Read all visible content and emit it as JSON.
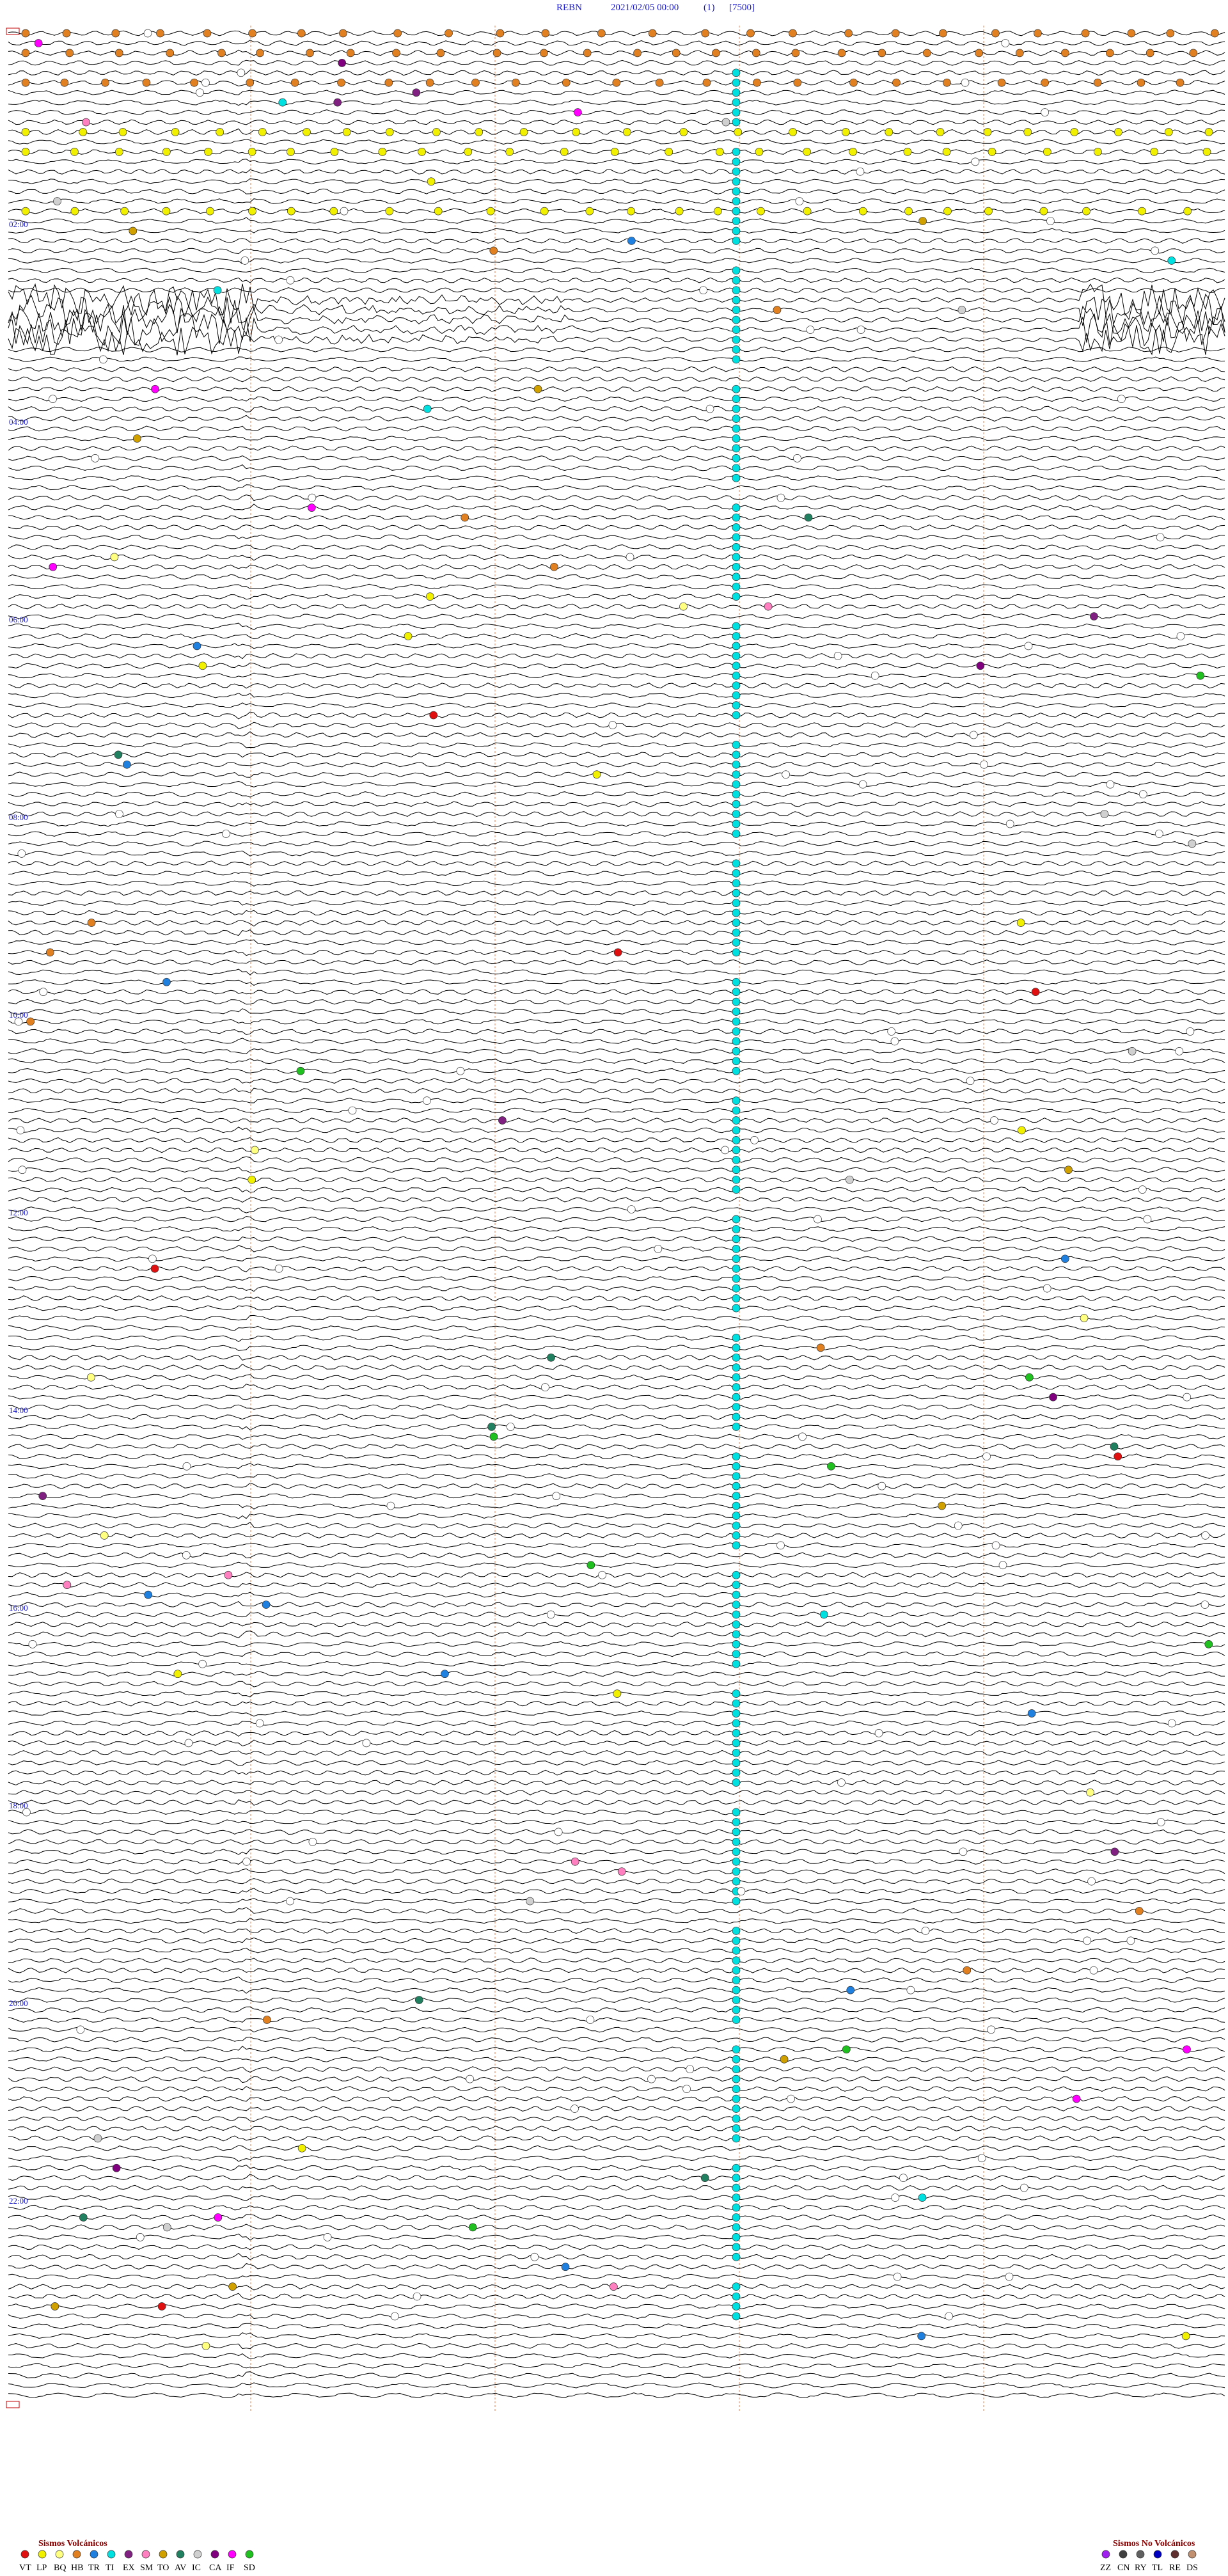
{
  "header": {
    "station": "REBN",
    "datetime": "2021/02/05 00:00",
    "channel": "(1)",
    "scale": "[7500]"
  },
  "time_labels": [
    "02:00",
    "04:00",
    "06:00",
    "08:00",
    "10:00",
    "12:00",
    "14:00",
    "16:00",
    "18:00",
    "20:00",
    "22:00"
  ],
  "legend_volcanic": {
    "title": "Sismos Volcánicos",
    "codes": [
      "VT",
      "LP",
      "BQ",
      "HB",
      "TR",
      "TI",
      "EX",
      "SM",
      "TO",
      "AV",
      "IC",
      "CA",
      "IF",
      "SD"
    ],
    "colors": [
      "#e01010",
      "#f0f000",
      "#ffff80",
      "#e08020",
      "#2080e0",
      "#00e0e0",
      "#802080",
      "#ff80c0",
      "#d0a000",
      "#208060",
      "#d0d0d0",
      "#800080",
      "#ff00ff",
      "#20c020"
    ]
  },
  "legend_non_volcanic": {
    "title": "Sismos No Volcánicos",
    "codes": [
      "ZZ",
      "CN",
      "RY",
      "TL",
      "RE",
      "DS"
    ],
    "colors": [
      "#a020f0",
      "#404040",
      "#606060",
      "#0000c0",
      "#603030",
      "#c09070"
    ]
  }
}
